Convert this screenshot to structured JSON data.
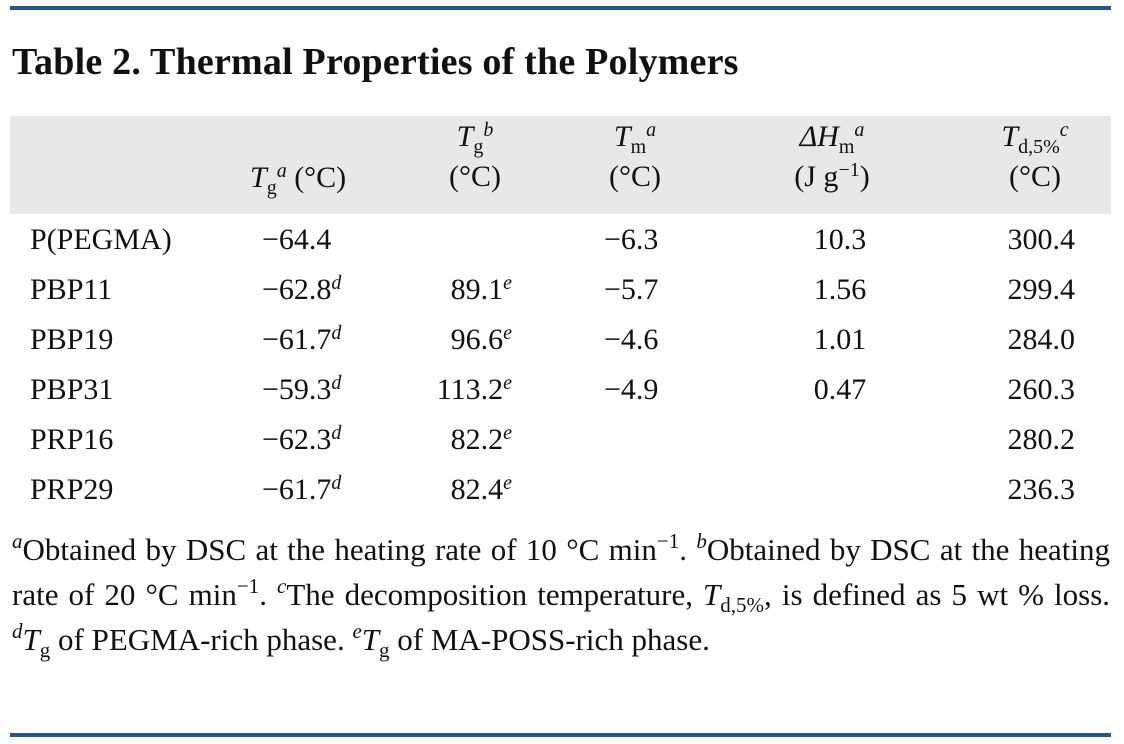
{
  "table": {
    "title": "Table 2. Thermal Properties of the Polymers",
    "headers": {
      "tg_a": {
        "symbol": "T",
        "sub": "g",
        "sup": "a",
        "unit": "(°C)"
      },
      "tg_b": {
        "symbol": "T",
        "sub": "g",
        "sup": "b",
        "unit": "(°C)"
      },
      "tm": {
        "symbol": "T",
        "sub": "m",
        "sup": "a",
        "unit": "(°C)"
      },
      "dhm": {
        "symbol": "ΔH",
        "sub": "m",
        "sup": "a",
        "unit_pre": "(J g",
        "unit_sup": "−1",
        "unit_post": ")"
      },
      "td": {
        "symbol": "T",
        "sub": "d,5%",
        "sup": "c",
        "unit": "(°C)"
      }
    },
    "rows": [
      {
        "name": "P(PEGMA)",
        "tg_a": "−64.4",
        "tg_a_mark": "",
        "tg_b": "",
        "tg_b_mark": "",
        "tm": "−6.3",
        "dhm": "10.3",
        "td": "300.4"
      },
      {
        "name": "PBP11",
        "tg_a": "−62.8",
        "tg_a_mark": "d",
        "tg_b": "89.1",
        "tg_b_mark": "e",
        "tm": "−5.7",
        "dhm": "1.56",
        "td": "299.4"
      },
      {
        "name": "PBP19",
        "tg_a": "−61.7",
        "tg_a_mark": "d",
        "tg_b": "96.6",
        "tg_b_mark": "e",
        "tm": "−4.6",
        "dhm": "1.01",
        "td": "284.0"
      },
      {
        "name": "PBP31",
        "tg_a": "−59.3",
        "tg_a_mark": "d",
        "tg_b": "113.2",
        "tg_b_mark": "e",
        "tm": "−4.9",
        "dhm": "0.47",
        "td": "260.3"
      },
      {
        "name": "PRP16",
        "tg_a": "−62.3",
        "tg_a_mark": "d",
        "tg_b": "82.2",
        "tg_b_mark": "e",
        "tm": "",
        "dhm": "",
        "td": "280.2"
      },
      {
        "name": "PRP29",
        "tg_a": "−61.7",
        "tg_a_mark": "d",
        "tg_b": "82.4",
        "tg_b_mark": "e",
        "tm": "",
        "dhm": "",
        "td": "236.3"
      }
    ],
    "footnotes": {
      "a_mark": "a",
      "a_text_1": "Obtained by DSC at the heating rate of 10 °C min",
      "a_sup": "−1",
      "a_text_2": ".",
      "b_mark": "b",
      "b_text_1": "Obtained by DSC at the heating rate of 20 °C min",
      "b_sup": "−1",
      "b_text_2": ".",
      "c_mark": "c",
      "c_text_1": "The decomposition temperature, ",
      "c_sym": "T",
      "c_sub": "d,5%",
      "c_text_2": ", is defined as 5 wt % loss.",
      "d_mark": "d",
      "d_sym": "T",
      "d_sub": "g",
      "d_text": " of PEGMA-rich phase.",
      "e_mark": "e",
      "e_sym": "T",
      "e_sub": "g",
      "e_text": " of MA-POSS-rich phase."
    }
  }
}
